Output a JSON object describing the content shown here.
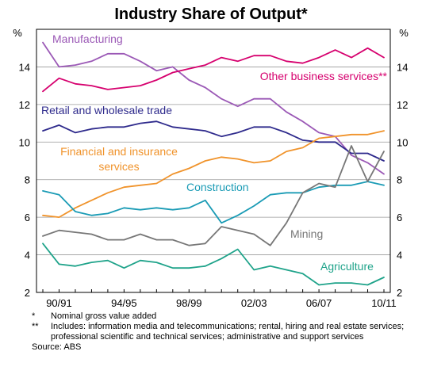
{
  "chart_data": {
    "type": "line",
    "title": "Industry Share of Output*",
    "ylabel": "%",
    "ylim": [
      2,
      16
    ],
    "yticks": [
      2,
      4,
      6,
      8,
      10,
      12,
      14
    ],
    "xlim": [
      0,
      21
    ],
    "x_tick_labels": [
      "90/91",
      "94/95",
      "98/99",
      "02/03",
      "06/07",
      "10/11"
    ],
    "x_tick_positions": [
      1,
      5,
      9,
      13,
      17,
      21
    ],
    "grid": true,
    "x": [
      0,
      1,
      2,
      3,
      4,
      5,
      6,
      7,
      8,
      9,
      10,
      11,
      12,
      13,
      14,
      15,
      16,
      17,
      18,
      19,
      20,
      21
    ],
    "series": [
      {
        "name": "Manufacturing",
        "color": "#9b59b6",
        "values": [
          15.3,
          14.0,
          14.1,
          14.3,
          14.7,
          14.7,
          14.3,
          13.8,
          14.0,
          13.3,
          12.9,
          12.3,
          11.9,
          12.3,
          12.3,
          11.6,
          11.1,
          10.5,
          10.3,
          9.3,
          8.9,
          8.3
        ]
      },
      {
        "name": "Other business services**",
        "color": "#d6006e",
        "values": [
          12.7,
          13.4,
          13.1,
          13.0,
          12.8,
          12.9,
          13.0,
          13.3,
          13.7,
          13.9,
          14.1,
          14.5,
          14.3,
          14.6,
          14.6,
          14.3,
          14.2,
          14.5,
          14.9,
          14.5,
          15.0,
          14.5
        ]
      },
      {
        "name": "Retail and wholesale trade",
        "color": "#2e2a8c",
        "values": [
          10.6,
          10.9,
          10.5,
          10.7,
          10.8,
          10.8,
          11.0,
          11.1,
          10.8,
          10.7,
          10.6,
          10.3,
          10.5,
          10.8,
          10.8,
          10.5,
          10.1,
          10.0,
          10.0,
          9.4,
          9.4,
          9.0
        ]
      },
      {
        "name": "Financial and insurance services",
        "color": "#f0932b",
        "values": [
          6.1,
          6.0,
          6.5,
          6.9,
          7.3,
          7.6,
          7.7,
          7.8,
          8.3,
          8.6,
          9.0,
          9.2,
          9.1,
          8.9,
          9.0,
          9.5,
          9.7,
          10.2,
          10.3,
          10.4,
          10.4,
          10.6
        ]
      },
      {
        "name": "Construction",
        "color": "#1a9bb5",
        "values": [
          7.4,
          7.2,
          6.3,
          6.1,
          6.2,
          6.5,
          6.4,
          6.5,
          6.4,
          6.5,
          6.9,
          5.7,
          6.1,
          6.6,
          7.2,
          7.3,
          7.3,
          7.6,
          7.7,
          7.7,
          7.9,
          7.7
        ]
      },
      {
        "name": "Mining",
        "color": "#777777",
        "values": [
          5.0,
          5.3,
          5.2,
          5.1,
          4.8,
          4.8,
          5.1,
          4.8,
          4.8,
          4.5,
          4.6,
          5.5,
          5.3,
          5.1,
          4.5,
          5.7,
          7.3,
          7.8,
          7.6,
          9.8,
          7.9,
          9.5
        ]
      },
      {
        "name": "Agriculture",
        "color": "#1fa38a",
        "values": [
          4.6,
          3.5,
          3.4,
          3.6,
          3.7,
          3.3,
          3.7,
          3.6,
          3.3,
          3.3,
          3.4,
          3.8,
          4.3,
          3.2,
          3.4,
          3.2,
          3.0,
          2.4,
          2.5,
          2.5,
          2.4,
          2.8
        ]
      }
    ],
    "labels": {
      "manufacturing": "Manufacturing",
      "other_business": "Other business services**",
      "retail": "Retail and wholesale trade",
      "financial_line1": "Financial and insurance",
      "financial_line2": "services",
      "construction": "Construction",
      "mining": "Mining",
      "agriculture": "Agriculture"
    }
  },
  "footnotes": [
    {
      "mark": "*",
      "text": "Nominal gross value added"
    },
    {
      "mark": "**",
      "text": "Includes: information media and telecommunications; rental, hiring and real estate services; professional scientific and technical services; administrative and support services"
    }
  ],
  "source": "Source: ABS"
}
